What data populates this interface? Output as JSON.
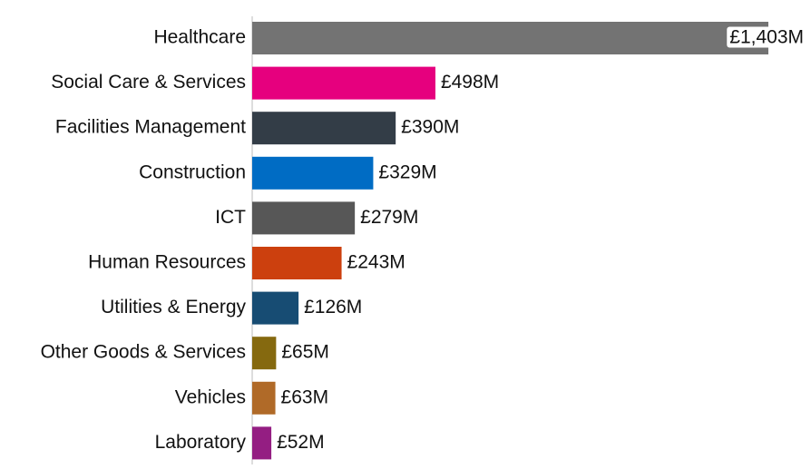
{
  "chart_data": {
    "type": "bar",
    "orientation": "horizontal",
    "categories": [
      "Healthcare",
      "Social Care & Services",
      "Facilities Management",
      "Construction",
      "ICT",
      "Human Resources",
      "Utilities & Energy",
      "Other Goods & Services",
      "Vehicles",
      "Laboratory"
    ],
    "values": [
      1403,
      498,
      390,
      329,
      279,
      243,
      126,
      65,
      63,
      52
    ],
    "value_labels": [
      "£1,403M",
      "£498M",
      "£390M",
      "£329M",
      "£279M",
      "£243M",
      "£126M",
      "£65M",
      "£63M",
      "£52M"
    ],
    "colors": [
      "#737373",
      "#e6007e",
      "#333d47",
      "#006cc4",
      "#575757",
      "#cc400e",
      "#174c73",
      "#85690f",
      "#b06a28",
      "#941e82"
    ]
  }
}
